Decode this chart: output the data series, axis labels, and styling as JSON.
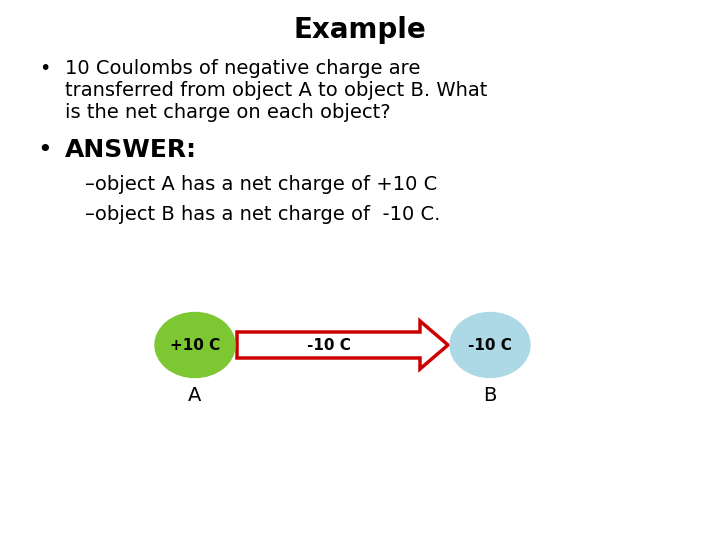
{
  "title": "Example",
  "bullet1_line1": "10 Coulombs of negative charge are",
  "bullet1_line2": "transferred from object A to object B. What",
  "bullet1_line3": "is the net charge on each object?",
  "bullet2": "ANSWER:",
  "dash1": "–object A has a net charge of +10 C",
  "dash2": "–object B has a net charge of  -10 C.",
  "circle_A_color": "#7dc832",
  "circle_B_color": "#add8e6",
  "arrow_fill_color": "#ffffff",
  "arrow_edge_color": "#cc0000",
  "circle_A_label": "+10 C",
  "arrow_label": "-10 C",
  "circle_B_label": "-10 C",
  "label_A": "A",
  "label_B": "B",
  "bg_color": "#ffffff",
  "text_color": "#000000",
  "title_fontsize": 20,
  "body_fontsize": 14,
  "answer_fontsize": 18,
  "diagram_fontsize": 11
}
